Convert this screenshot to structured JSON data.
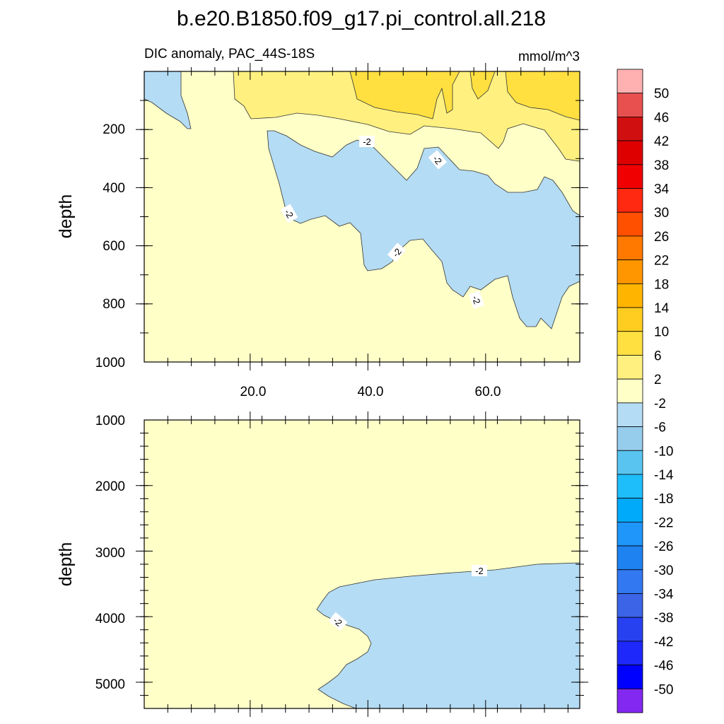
{
  "chart_data": {
    "type": "heatmap",
    "title": "b.e20.B1850.f09_g17.pi_control.all.218",
    "subtitle_left": "DIC anomaly, PAC_44S-18S",
    "subtitle_right": "mmol/m^3",
    "contour_label": "-2",
    "panels": [
      {
        "name": "upper",
        "ylabel": "depth",
        "ylim": [
          0,
          1000
        ],
        "xlim": [
          2,
          76
        ],
        "yticks": [
          "200",
          "400",
          "600",
          "800",
          "1000"
        ],
        "xticks": [
          "20.0",
          "40.0",
          "60.0"
        ]
      },
      {
        "name": "lower",
        "ylabel": "depth",
        "ylim": [
          1000,
          5400
        ],
        "xlim": [
          2,
          76
        ],
        "yticks": [
          "1000",
          "2000",
          "3000",
          "4000",
          "5000"
        ]
      }
    ],
    "colorbar": {
      "labels": [
        "50",
        "46",
        "42",
        "38",
        "34",
        "30",
        "26",
        "22",
        "18",
        "14",
        "10",
        "6",
        "2",
        "-2",
        "-6",
        "-10",
        "-14",
        "-18",
        "-22",
        "-26",
        "-30",
        "-34",
        "-38",
        "-42",
        "-46",
        "-50"
      ],
      "colors": [
        "#FFB0B0",
        "#E85050",
        "#D01010",
        "#DE0000",
        "#F00000",
        "#FF2810",
        "#FF5000",
        "#FF7800",
        "#FF9600",
        "#FFB400",
        "#FFCC20",
        "#FFE040",
        "#FFF080",
        "#FFFFC8",
        "#B4DCF4",
        "#96CCEC",
        "#5AC4F0",
        "#1EBEFA",
        "#00AAFA",
        "#1E96FA",
        "#1E82F0",
        "#3278F0",
        "#3C64E6",
        "#2841F0",
        "#1E28FA",
        "#0000FF",
        "#8228F0"
      ]
    }
  }
}
